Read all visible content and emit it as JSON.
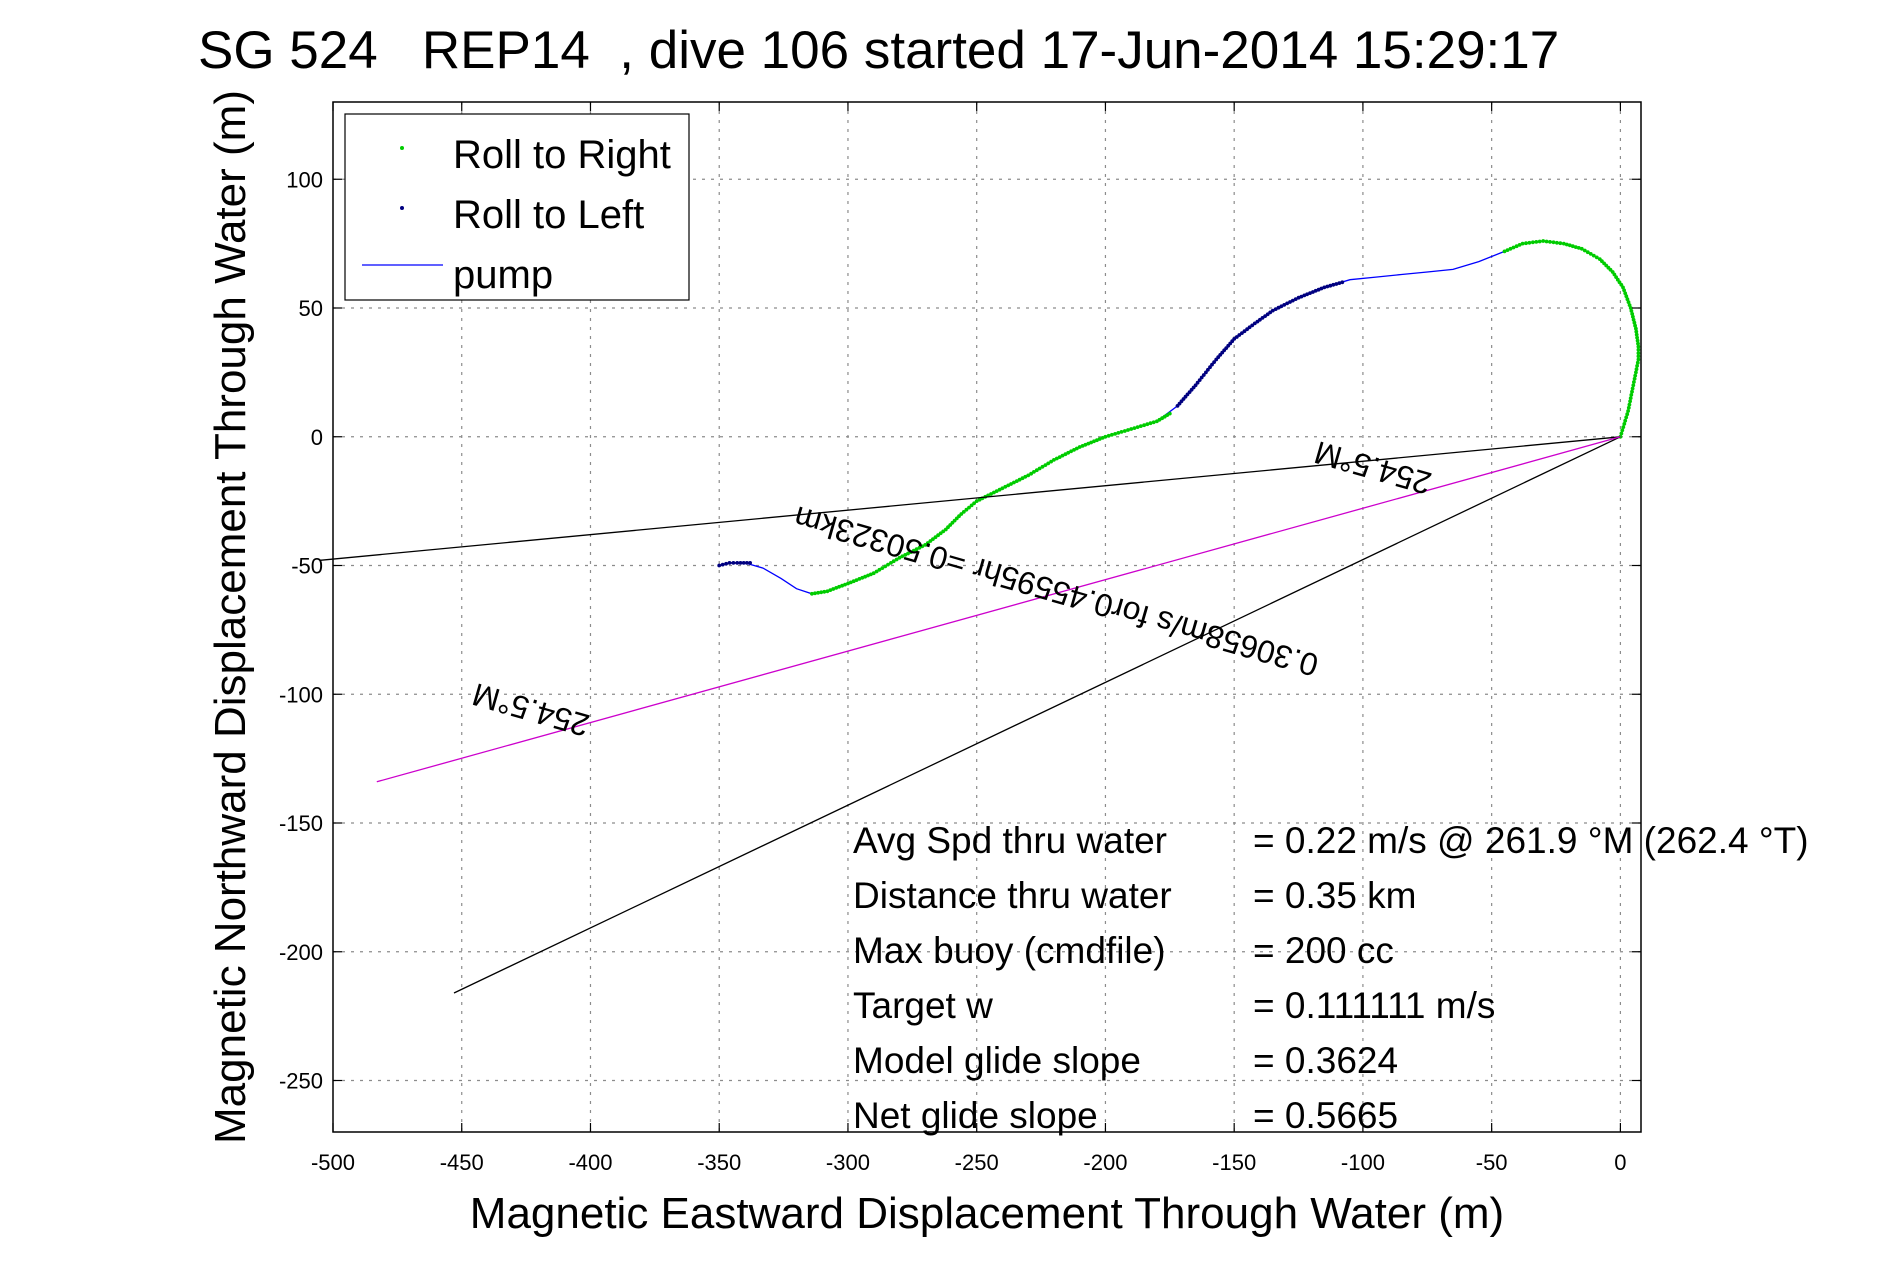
{
  "chart_data": {
    "type": "line",
    "title": "SG 524   REP14  , dive 106 started 17-Jun-2014 15:29:17",
    "xlabel": "Magnetic Eastward Displacement Through Water (m)",
    "ylabel": "Magnetic Northward Displacement Through Water (m)",
    "xlim": [
      -500,
      8
    ],
    "ylim": [
      -270,
      130
    ],
    "xticks": [
      -500,
      -450,
      -400,
      -350,
      -300,
      -250,
      -200,
      -150,
      -100,
      -50,
      0
    ],
    "yticks": [
      -250,
      -200,
      -150,
      -100,
      -50,
      0,
      50,
      100
    ],
    "grid": true,
    "legend": {
      "placement": "top-left",
      "entries": [
        {
          "label": "Roll to Right",
          "color": "#00cc00",
          "style": "dot"
        },
        {
          "label": "Roll to Left",
          "color": "#000080",
          "style": "dot"
        },
        {
          "label": "pump",
          "color": "#0000ff",
          "style": "line"
        }
      ]
    },
    "series": [
      {
        "name": "pump",
        "color": "#0000ff",
        "points": [
          [
            0,
            0
          ],
          [
            3,
            10
          ],
          [
            5,
            20
          ],
          [
            7,
            30
          ],
          [
            7,
            35
          ],
          [
            6,
            42
          ],
          [
            4,
            50
          ],
          [
            1,
            58
          ],
          [
            -3,
            64
          ],
          [
            -8,
            69
          ],
          [
            -15,
            73
          ],
          [
            -22,
            75
          ],
          [
            -30,
            76
          ],
          [
            -38,
            75
          ],
          [
            -45,
            72
          ],
          [
            -55,
            68
          ],
          [
            -65,
            65
          ],
          [
            -75,
            64
          ],
          [
            -85,
            63
          ],
          [
            -95,
            62
          ],
          [
            -105,
            61
          ],
          [
            -115,
            58
          ],
          [
            -125,
            54
          ],
          [
            -135,
            49
          ],
          [
            -142,
            44
          ],
          [
            -150,
            38
          ],
          [
            -157,
            30
          ],
          [
            -165,
            20
          ],
          [
            -172,
            12
          ],
          [
            -180,
            6
          ],
          [
            -190,
            3
          ],
          [
            -200,
            0
          ],
          [
            -210,
            -4
          ],
          [
            -220,
            -9
          ],
          [
            -230,
            -15
          ],
          [
            -240,
            -20
          ],
          [
            -250,
            -25
          ],
          [
            -256,
            -30
          ],
          [
            -262,
            -36
          ],
          [
            -270,
            -42
          ],
          [
            -280,
            -47
          ],
          [
            -290,
            -53
          ],
          [
            -300,
            -57
          ],
          [
            -308,
            -60
          ],
          [
            -314,
            -61
          ],
          [
            -320,
            -59
          ],
          [
            -326,
            -55
          ],
          [
            -333,
            -51
          ],
          [
            -340,
            -49
          ],
          [
            -346,
            -49
          ],
          [
            -350,
            -50
          ]
        ]
      },
      {
        "name": "Roll to Right",
        "color": "#00cc00",
        "segments": [
          [
            [
              0,
              0
            ],
            [
              3,
              10
            ],
            [
              5,
              20
            ],
            [
              7,
              30
            ],
            [
              7,
              35
            ],
            [
              6,
              42
            ],
            [
              4,
              50
            ],
            [
              1,
              58
            ],
            [
              -3,
              64
            ],
            [
              -8,
              69
            ],
            [
              -15,
              73
            ],
            [
              -22,
              75
            ],
            [
              -30,
              76
            ],
            [
              -38,
              75
            ],
            [
              -45,
              72
            ]
          ],
          [
            [
              -175,
              9
            ],
            [
              -180,
              6
            ],
            [
              -190,
              3
            ],
            [
              -200,
              0
            ],
            [
              -210,
              -4
            ],
            [
              -220,
              -9
            ],
            [
              -230,
              -15
            ],
            [
              -240,
              -20
            ],
            [
              -250,
              -25
            ],
            [
              -256,
              -30
            ],
            [
              -262,
              -36
            ],
            [
              -270,
              -42
            ],
            [
              -280,
              -47
            ],
            [
              -290,
              -53
            ],
            [
              -300,
              -57
            ],
            [
              -308,
              -60
            ],
            [
              -314,
              -61
            ]
          ]
        ]
      },
      {
        "name": "Roll to Left",
        "color": "#000080",
        "segments": [
          [
            [
              -108,
              60
            ],
            [
              -115,
              58
            ],
            [
              -125,
              54
            ],
            [
              -135,
              49
            ],
            [
              -142,
              44
            ],
            [
              -150,
              38
            ],
            [
              -157,
              30
            ],
            [
              -165,
              20
            ],
            [
              -172,
              12
            ]
          ],
          [
            [
              -338,
              -49
            ],
            [
              -343,
              -49
            ],
            [
              -346,
              -49
            ],
            [
              -350,
              -50
            ]
          ]
        ]
      },
      {
        "name": "",
        "color": "#000000",
        "points": [
          [
            0,
            0
          ],
          [
            -505,
            -48
          ]
        ]
      },
      {
        "name": "",
        "color": "#000000",
        "points": [
          [
            0,
            0
          ],
          [
            -453,
            -216
          ]
        ]
      },
      {
        "name": "",
        "color": "#cc00cc",
        "points": [
          [
            0,
            0
          ],
          [
            -483,
            -134
          ]
        ]
      }
    ],
    "annotations": [
      {
        "text": "254.5°M",
        "x": -95,
        "y": -8,
        "rotate": 196
      },
      {
        "text": "0.30658m/s for0.45595hr =0.50323km",
        "x": -218,
        "y": -56,
        "rotate": 196
      },
      {
        "text": "254.5°M",
        "x": -422,
        "y": -102,
        "rotate": 196
      }
    ],
    "stats": [
      {
        "label": "Avg Spd thru water",
        "value": "=  0.22 m/s @ 261.9 °M (262.4 °T)"
      },
      {
        "label": "Distance thru water",
        "value": "=  0.35 km"
      },
      {
        "label": "Max buoy (cmdfile)",
        "value": "= 200 cc"
      },
      {
        "label": "Target w",
        "value": "= 0.111111 m/s"
      },
      {
        "label": "Model glide slope",
        "value": "= 0.3624"
      },
      {
        "label": "Net glide slope",
        "value": "= 0.5665"
      }
    ]
  }
}
